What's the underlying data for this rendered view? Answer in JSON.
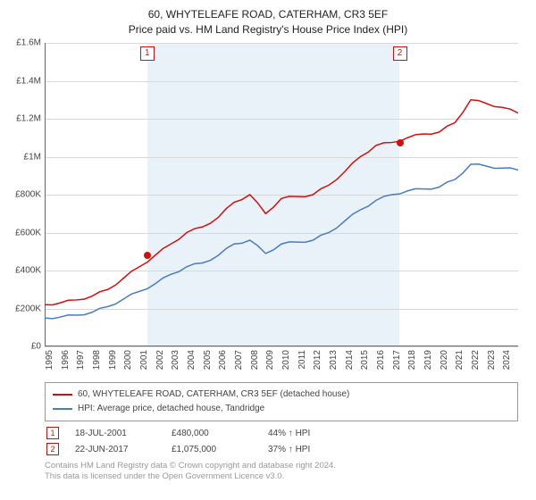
{
  "title_line1": "60, WHYTELEAFE ROAD, CATERHAM, CR3 5EF",
  "title_line2": "Price paid vs. HM Land Registry's House Price Index (HPI)",
  "chart": {
    "type": "line",
    "background_color": "#ffffff",
    "shade_color": "#eaf2f9",
    "grid_color": "#d8d8d8",
    "axis_color": "#666666",
    "x_years": [
      1995,
      1996,
      1997,
      1998,
      1999,
      2000,
      2001,
      2002,
      2003,
      2004,
      2005,
      2006,
      2007,
      2008,
      2009,
      2010,
      2011,
      2012,
      2013,
      2014,
      2015,
      2016,
      2017,
      2018,
      2019,
      2020,
      2021,
      2022,
      2023,
      2024
    ],
    "x_min": 1995,
    "x_max": 2025,
    "y_min": 0,
    "y_max": 1600000,
    "y_ticks": [
      0,
      200000,
      400000,
      600000,
      800000,
      1000000,
      1200000,
      1400000,
      1600000
    ],
    "y_tick_labels": [
      "£0",
      "£200K",
      "£400K",
      "£600K",
      "£800K",
      "£1M",
      "£1.2M",
      "£1.4M",
      "£1.6M"
    ],
    "shade_start_year": 2001.5,
    "shade_end_year": 2017.5,
    "label_fontsize": 10,
    "title_fontsize": 12,
    "series": [
      {
        "name": "property",
        "label": "60, WHYTELEAFE ROAD, CATERHAM, CR3 5EF (detached house)",
        "color": "#d01010",
        "line_width": 1.5,
        "points": [
          [
            1995,
            220000
          ],
          [
            1996,
            230000
          ],
          [
            1997,
            245000
          ],
          [
            1998,
            265000
          ],
          [
            1999,
            300000
          ],
          [
            2000,
            360000
          ],
          [
            2001,
            420000
          ],
          [
            2002,
            480000
          ],
          [
            2003,
            540000
          ],
          [
            2004,
            600000
          ],
          [
            2005,
            630000
          ],
          [
            2006,
            680000
          ],
          [
            2007,
            760000
          ],
          [
            2008,
            800000
          ],
          [
            2009,
            700000
          ],
          [
            2010,
            780000
          ],
          [
            2011,
            790000
          ],
          [
            2012,
            800000
          ],
          [
            2013,
            850000
          ],
          [
            2014,
            920000
          ],
          [
            2015,
            1000000
          ],
          [
            2016,
            1060000
          ],
          [
            2017,
            1075000
          ],
          [
            2018,
            1100000
          ],
          [
            2019,
            1120000
          ],
          [
            2020,
            1130000
          ],
          [
            2021,
            1180000
          ],
          [
            2022,
            1300000
          ],
          [
            2023,
            1280000
          ],
          [
            2024,
            1260000
          ],
          [
            2025,
            1230000
          ]
        ]
      },
      {
        "name": "hpi",
        "label": "HPI: Average price, detached house, Tandridge",
        "color": "#4a7cc0",
        "line_width": 1.5,
        "points": [
          [
            1995,
            150000
          ],
          [
            1996,
            155000
          ],
          [
            1997,
            165000
          ],
          [
            1998,
            180000
          ],
          [
            1999,
            210000
          ],
          [
            2000,
            250000
          ],
          [
            2001,
            290000
          ],
          [
            2002,
            330000
          ],
          [
            2003,
            380000
          ],
          [
            2004,
            420000
          ],
          [
            2005,
            440000
          ],
          [
            2006,
            480000
          ],
          [
            2007,
            540000
          ],
          [
            2008,
            560000
          ],
          [
            2009,
            490000
          ],
          [
            2010,
            540000
          ],
          [
            2011,
            550000
          ],
          [
            2012,
            560000
          ],
          [
            2013,
            600000
          ],
          [
            2014,
            660000
          ],
          [
            2015,
            720000
          ],
          [
            2016,
            770000
          ],
          [
            2017,
            800000
          ],
          [
            2018,
            820000
          ],
          [
            2019,
            830000
          ],
          [
            2020,
            840000
          ],
          [
            2021,
            880000
          ],
          [
            2022,
            960000
          ],
          [
            2023,
            950000
          ],
          [
            2024,
            940000
          ],
          [
            2025,
            930000
          ]
        ]
      }
    ],
    "markers": [
      {
        "num": "1",
        "year": 2001.5,
        "price": 480000,
        "color": "#d01010"
      },
      {
        "num": "2",
        "year": 2017.5,
        "price": 1075000,
        "color": "#d01010"
      }
    ]
  },
  "transactions": [
    {
      "num": "1",
      "date": "18-JUL-2001",
      "price": "£480,000",
      "vs_hpi": "44% ↑ HPI",
      "border_color": "#d01010"
    },
    {
      "num": "2",
      "date": "22-JUN-2017",
      "price": "£1,075,000",
      "vs_hpi": "37% ↑ HPI",
      "border_color": "#d01010"
    }
  ],
  "license_line1": "Contains HM Land Registry data © Crown copyright and database right 2024.",
  "license_line2": "This data is licensed under the Open Government Licence v3.0."
}
